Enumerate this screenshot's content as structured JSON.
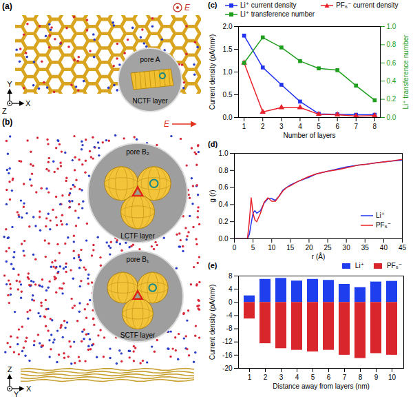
{
  "panel_a": {
    "label": "(a)",
    "field": "E",
    "inset": {
      "pore": "pore A",
      "layer": "NCTF layer"
    },
    "axes": {
      "up": "Y",
      "out": "Z",
      "right": "X"
    }
  },
  "panel_b": {
    "label": "(b)",
    "field": "E",
    "insets": [
      {
        "pore": "pore B₂",
        "layer": "LCTF layer"
      },
      {
        "pore": "pore B₁",
        "layer": "SCTF layer"
      }
    ],
    "axes": {
      "up": "Z",
      "out": "Y",
      "right": "X"
    }
  },
  "chart_data": [
    {
      "type": "line",
      "title": "(c)",
      "x": [
        1,
        2,
        3,
        4,
        5,
        6,
        7,
        8
      ],
      "xlabel": "Number of layers",
      "xlim": [
        0.7,
        8.3
      ],
      "xticks": [
        1,
        2,
        3,
        4,
        5,
        6,
        7,
        8
      ],
      "ylabel": "Current density (pA/nm²)",
      "ylim": [
        0,
        2
      ],
      "yticks": [
        {
          "value": 0,
          "label": "0.0"
        },
        0.5,
        {
          "value": 1,
          "label": "1.0"
        },
        1.5,
        {
          "value": 2,
          "label": "2.0"
        }
      ],
      "y2label": "Li⁺ transference number",
      "y2lim": [
        0,
        1
      ],
      "y2ticks": [
        {
          "value": 0,
          "label": "0.0"
        },
        0.2,
        0.4,
        0.6,
        0.8,
        {
          "value": 1,
          "label": "1.0"
        }
      ],
      "legend": "top",
      "series": [
        {
          "name": "Li⁺ current density",
          "color": "#2233ee",
          "marker": "square",
          "values": [
            1.8,
            1.1,
            0.72,
            0.35,
            0.08,
            0.07,
            0.06,
            0.06
          ]
        },
        {
          "name": "PF₆⁻ current density",
          "color": "#e8202a",
          "marker": "triangle",
          "values": [
            1.2,
            0.12,
            0.22,
            0.22,
            0.07,
            0.06,
            0.03,
            0.04
          ]
        },
        {
          "name": "Li⁺ transference number",
          "color": "#1f9e1f",
          "marker": "square",
          "axis": "y2",
          "values": [
            0.6,
            0.88,
            0.77,
            0.62,
            0.54,
            0.52,
            0.35,
            0.19
          ]
        }
      ]
    },
    {
      "type": "line",
      "title": "(d)",
      "x": [
        0,
        3.5,
        4,
        4.5,
        5,
        5.5,
        6,
        7,
        8,
        9,
        10,
        11,
        12,
        13,
        14,
        15,
        17,
        20,
        22,
        25,
        28,
        30,
        33,
        35,
        38,
        40,
        42,
        45
      ],
      "xlabel": "r (Å)",
      "xlim": [
        0,
        45
      ],
      "xticks": [
        0,
        5,
        10,
        15,
        20,
        25,
        30,
        35,
        40,
        45
      ],
      "ylabel": "g (r)",
      "ylim": [
        0,
        1
      ],
      "yticks": [
        {
          "value": 0,
          "label": "0.0"
        },
        0.2,
        0.4,
        0.6,
        0.8,
        {
          "value": 1,
          "label": "1.0"
        }
      ],
      "legend": "lower right",
      "series": [
        {
          "name": "Li⁺",
          "color": "#2233ee",
          "values": [
            0,
            0,
            0.05,
            0.18,
            0.3,
            0.33,
            0.3,
            0.33,
            0.42,
            0.47,
            0.47,
            0.45,
            0.5,
            0.57,
            0.6,
            0.63,
            0.67,
            0.72,
            0.76,
            0.79,
            0.82,
            0.84,
            0.86,
            0.87,
            0.89,
            0.9,
            0.91,
            0.92
          ]
        },
        {
          "name": "PF₆⁻",
          "color": "#e8202a",
          "values": [
            0,
            0,
            0.2,
            0.48,
            0.3,
            0.22,
            0.2,
            0.3,
            0.43,
            0.48,
            0.44,
            0.44,
            0.5,
            0.56,
            0.6,
            0.62,
            0.67,
            0.73,
            0.76,
            0.79,
            0.81,
            0.83,
            0.86,
            0.87,
            0.89,
            0.9,
            0.91,
            0.93
          ]
        }
      ]
    },
    {
      "type": "bar",
      "title": "(e)",
      "categories": [
        1,
        2,
        3,
        4,
        5,
        6,
        7,
        8,
        9,
        10
      ],
      "xlabel": "Distance away from layers (nm)",
      "ylabel": "Current density (pA/nm²)",
      "ylim": [
        -20,
        8
      ],
      "yticks": [
        -20,
        -16,
        -12,
        -8,
        -4,
        0,
        4,
        8
      ],
      "legend": "top",
      "series": [
        {
          "name": "Li⁺",
          "color": "#1f3fee",
          "values": [
            2,
            7,
            7.3,
            6.5,
            7,
            6.7,
            5.5,
            4.5,
            6.2,
            6.4
          ]
        },
        {
          "name": "PF₆⁻",
          "color": "#d8262c",
          "values": [
            -5,
            -12.5,
            -14,
            -14.5,
            -15,
            -14.5,
            -16,
            -17,
            -15.5,
            -16
          ]
        }
      ]
    }
  ]
}
